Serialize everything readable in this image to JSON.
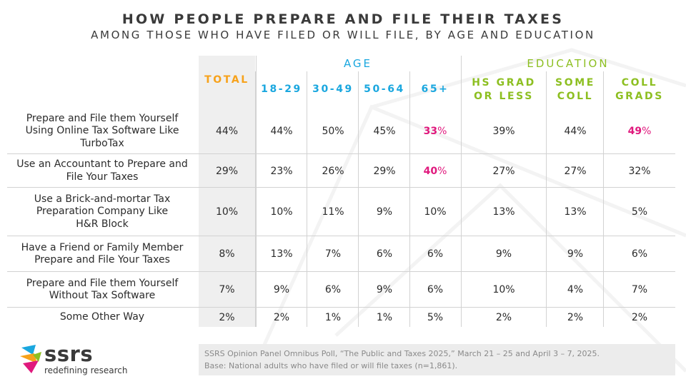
{
  "title": "HOW PEOPLE PREPARE AND FILE THEIR TAXES",
  "subtitle": "AMONG THOSE WHO HAVE FILED OR WILL FILE, BY AGE AND EDUCATION",
  "colors": {
    "total": "#f7a21b",
    "age": "#1aa7df",
    "education": "#8dbf21",
    "highlight": "#e0197d",
    "text": "#2b2b2b"
  },
  "groups": {
    "age": "AGE",
    "education": "EDUCATION"
  },
  "columns": [
    {
      "label": [
        "TOTAL"
      ],
      "group": "total"
    },
    {
      "label": [
        "18-29"
      ],
      "group": "age"
    },
    {
      "label": [
        "30-49"
      ],
      "group": "age"
    },
    {
      "label": [
        "50-64"
      ],
      "group": "age"
    },
    {
      "label": [
        "65+"
      ],
      "group": "age"
    },
    {
      "label": [
        "HS GRAD",
        "OR LESS"
      ],
      "group": "education"
    },
    {
      "label": [
        "SOME",
        "COLL"
      ],
      "group": "education"
    },
    {
      "label": [
        "COLL",
        "GRADS"
      ],
      "group": "education"
    }
  ],
  "chart_data": {
    "type": "table",
    "rows": [
      {
        "label": [
          "Prepare and File them Yourself",
          "Using Online Tax Software Like",
          "TurboTax"
        ],
        "values": [
          "44%",
          "44%",
          "50%",
          "45%",
          "33%",
          "39%",
          "44%",
          "49%"
        ],
        "highlight": [
          4,
          7
        ]
      },
      {
        "label": [
          "Use an Accountant to Prepare and",
          "File Your Taxes"
        ],
        "values": [
          "29%",
          "23%",
          "26%",
          "29%",
          "40%",
          "27%",
          "27%",
          "32%"
        ],
        "highlight": [
          4
        ]
      },
      {
        "label": [
          "Use a Brick-and-mortar Tax",
          "Preparation Company Like",
          "H&R Block"
        ],
        "values": [
          "10%",
          "10%",
          "11%",
          "9%",
          "10%",
          "13%",
          "13%",
          "5%"
        ],
        "highlight": []
      },
      {
        "label": [
          "Have a Friend or Family Member",
          "Prepare and File Your Taxes"
        ],
        "values": [
          "8%",
          "13%",
          "7%",
          "6%",
          "6%",
          "9%",
          "9%",
          "6%"
        ],
        "highlight": []
      },
      {
        "label": [
          "Prepare and File them Yourself",
          "Without Tax Software"
        ],
        "values": [
          "7%",
          "9%",
          "6%",
          "9%",
          "6%",
          "10%",
          "4%",
          "7%"
        ],
        "highlight": []
      },
      {
        "label": [
          "Some Other Way"
        ],
        "values": [
          "2%",
          "2%",
          "1%",
          "1%",
          "5%",
          "2%",
          "2%",
          "2%"
        ],
        "highlight": []
      }
    ]
  },
  "logo": {
    "name": "ssrs",
    "tagline": "redefining research"
  },
  "source": [
    "SSRS Opinion Panel Omnibus Poll, “The Public and Taxes 2025,” March 21 – 25 and April 3 – 7, 2025.",
    "Base: National adults who have filed or will file taxes (n=1,861)."
  ]
}
